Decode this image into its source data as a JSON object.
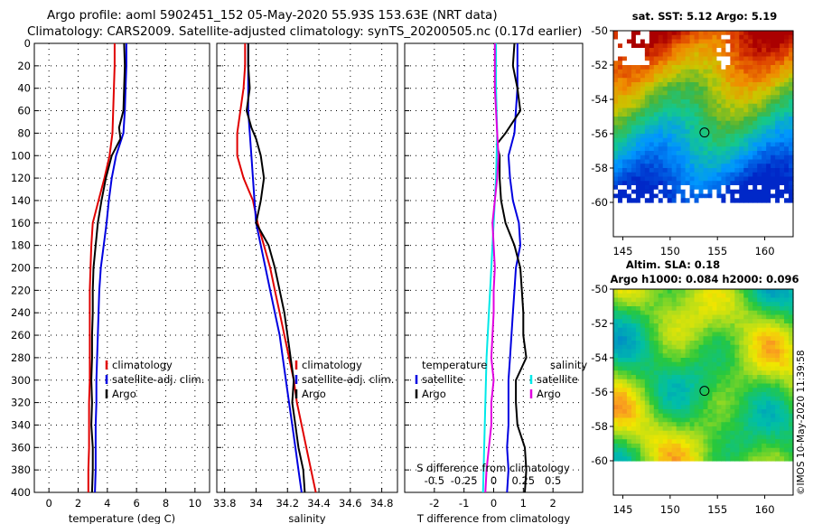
{
  "header": {
    "line1": "Argo profile: aoml 5902451_152 05-May-2020 55.93S 153.63E (NRT data)",
    "line2": "Climatology: CARS2009. Satellite-adjusted climatology: synTS_20200505.nc (0.17d earlier)"
  },
  "credit": "©IMOS 10-May-2020 11:39:58",
  "colors": {
    "climatology": "#e00000",
    "satellite": "#0000e0",
    "argo": "#000000",
    "sat_salinity": "#00e8e8",
    "argo_salinity": "#e000e0"
  },
  "chart_data": [
    {
      "type": "line",
      "name": "temperature",
      "xlabel": "temperature (deg C)",
      "xlim": [
        -1,
        11
      ],
      "xticks": [
        0,
        2,
        4,
        6,
        8,
        10
      ],
      "xtick_labels": [
        "0",
        "2",
        "4",
        "6",
        "8",
        "10"
      ],
      "ylim": [
        0,
        400
      ],
      "yticks": [
        0,
        20,
        40,
        60,
        80,
        100,
        120,
        140,
        160,
        180,
        200,
        220,
        240,
        260,
        280,
        300,
        320,
        340,
        360,
        380,
        400
      ],
      "legend": [
        "climatology",
        "satellite-adj. clim.",
        "Argo"
      ],
      "series": [
        {
          "name": "climatology",
          "color": "#e00000",
          "points": [
            [
              4.5,
              0
            ],
            [
              4.5,
              20
            ],
            [
              4.45,
              40
            ],
            [
              4.4,
              60
            ],
            [
              4.35,
              80
            ],
            [
              4.15,
              100
            ],
            [
              3.8,
              120
            ],
            [
              3.4,
              140
            ],
            [
              3.0,
              160
            ],
            [
              2.9,
              180
            ],
            [
              2.85,
              200
            ],
            [
              2.8,
              220
            ],
            [
              2.8,
              240
            ],
            [
              2.8,
              260
            ],
            [
              2.8,
              280
            ],
            [
              2.8,
              300
            ],
            [
              2.75,
              320
            ],
            [
              2.75,
              340
            ],
            [
              2.75,
              360
            ],
            [
              2.7,
              380
            ],
            [
              2.7,
              400
            ]
          ]
        },
        {
          "name": "satellite-adj. clim.",
          "color": "#0000e0",
          "points": [
            [
              5.3,
              0
            ],
            [
              5.3,
              20
            ],
            [
              5.25,
              40
            ],
            [
              5.2,
              60
            ],
            [
              5.1,
              80
            ],
            [
              4.6,
              100
            ],
            [
              4.3,
              120
            ],
            [
              4.1,
              140
            ],
            [
              3.95,
              160
            ],
            [
              3.75,
              180
            ],
            [
              3.55,
              200
            ],
            [
              3.45,
              220
            ],
            [
              3.4,
              240
            ],
            [
              3.35,
              260
            ],
            [
              3.3,
              280
            ],
            [
              3.25,
              300
            ],
            [
              3.25,
              320
            ],
            [
              3.2,
              340
            ],
            [
              3.2,
              360
            ],
            [
              3.2,
              380
            ],
            [
              3.15,
              400
            ]
          ]
        },
        {
          "name": "Argo",
          "color": "#000000",
          "points": [
            [
              5.15,
              0
            ],
            [
              5.2,
              20
            ],
            [
              5.15,
              40
            ],
            [
              5.1,
              60
            ],
            [
              4.8,
              75
            ],
            [
              4.9,
              85
            ],
            [
              4.3,
              100
            ],
            [
              3.9,
              120
            ],
            [
              3.6,
              140
            ],
            [
              3.35,
              160
            ],
            [
              3.2,
              180
            ],
            [
              3.05,
              200
            ],
            [
              3.0,
              220
            ],
            [
              3.0,
              240
            ],
            [
              2.95,
              260
            ],
            [
              2.95,
              280
            ],
            [
              2.9,
              300
            ],
            [
              2.95,
              320
            ],
            [
              2.9,
              340
            ],
            [
              3.0,
              360
            ],
            [
              3.0,
              380
            ],
            [
              2.95,
              400
            ]
          ]
        }
      ]
    },
    {
      "type": "line",
      "name": "salinity",
      "xlabel": "salinity",
      "xlim": [
        33.75,
        34.9
      ],
      "xticks": [
        33.8,
        34,
        34.2,
        34.4,
        34.6,
        34.8
      ],
      "xtick_labels": [
        "33.8",
        "34",
        "34.2",
        "34.4",
        "34.6",
        "34.8"
      ],
      "ylim": [
        0,
        400
      ],
      "legend": [
        "climatology",
        "satellite-adj. clim.",
        "Argo"
      ],
      "series": [
        {
          "name": "climatology",
          "color": "#e00000",
          "points": [
            [
              33.93,
              0
            ],
            [
              33.93,
              20
            ],
            [
              33.92,
              40
            ],
            [
              33.9,
              60
            ],
            [
              33.88,
              80
            ],
            [
              33.88,
              100
            ],
            [
              33.92,
              120
            ],
            [
              33.98,
              140
            ],
            [
              34.01,
              160
            ],
            [
              34.05,
              180
            ],
            [
              34.09,
              200
            ],
            [
              34.12,
              220
            ],
            [
              34.15,
              240
            ],
            [
              34.18,
              260
            ],
            [
              34.21,
              280
            ],
            [
              34.24,
              300
            ],
            [
              34.26,
              320
            ],
            [
              34.29,
              340
            ],
            [
              34.32,
              360
            ],
            [
              34.35,
              380
            ],
            [
              34.38,
              400
            ]
          ]
        },
        {
          "name": "satellite-adj. clim.",
          "color": "#0000e0",
          "points": [
            [
              33.95,
              0
            ],
            [
              33.95,
              20
            ],
            [
              33.95,
              40
            ],
            [
              33.95,
              60
            ],
            [
              33.96,
              80
            ],
            [
              33.97,
              100
            ],
            [
              33.98,
              120
            ],
            [
              33.99,
              140
            ],
            [
              34.0,
              160
            ],
            [
              34.03,
              180
            ],
            [
              34.06,
              200
            ],
            [
              34.09,
              220
            ],
            [
              34.12,
              240
            ],
            [
              34.15,
              260
            ],
            [
              34.17,
              280
            ],
            [
              34.19,
              300
            ],
            [
              34.21,
              320
            ],
            [
              34.23,
              340
            ],
            [
              34.25,
              360
            ],
            [
              34.27,
              380
            ],
            [
              34.29,
              400
            ]
          ]
        },
        {
          "name": "Argo",
          "color": "#000000",
          "points": [
            [
              33.95,
              0
            ],
            [
              33.95,
              20
            ],
            [
              33.96,
              40
            ],
            [
              33.94,
              60
            ],
            [
              33.97,
              75
            ],
            [
              34.0,
              85
            ],
            [
              34.03,
              100
            ],
            [
              34.05,
              120
            ],
            [
              34.03,
              140
            ],
            [
              34.0,
              160
            ],
            [
              34.08,
              180
            ],
            [
              34.12,
              200
            ],
            [
              34.15,
              220
            ],
            [
              34.18,
              240
            ],
            [
              34.2,
              260
            ],
            [
              34.22,
              280
            ],
            [
              34.24,
              300
            ],
            [
              34.23,
              320
            ],
            [
              34.25,
              340
            ],
            [
              34.27,
              360
            ],
            [
              34.3,
              380
            ],
            [
              34.31,
              400
            ]
          ]
        }
      ]
    },
    {
      "type": "line",
      "name": "differences",
      "xlabel": "T difference from climatology",
      "xlim": [
        -3,
        3
      ],
      "xticks": [
        -2,
        -1,
        0,
        1,
        2
      ],
      "xtick_labels": [
        "-2",
        "-1",
        "0",
        "1",
        "2"
      ],
      "top_label": "S difference from climatology",
      "top_ticks": [
        -0.5,
        -0.25,
        0,
        0.25,
        0.5
      ],
      "top_tick_labels": [
        "-0.5",
        "-0.25",
        "0",
        "0.25",
        "0.5"
      ],
      "ylim": [
        0,
        400
      ],
      "legend_left_title": "temperature",
      "legend_right_title": "salinity",
      "legend": [
        "satellite",
        "Argo",
        "satellite",
        "Argo"
      ],
      "series": [
        {
          "name": "T satellite",
          "color": "#0000e0",
          "points": [
            [
              0.8,
              0
            ],
            [
              0.8,
              20
            ],
            [
              0.8,
              40
            ],
            [
              0.75,
              60
            ],
            [
              0.7,
              80
            ],
            [
              0.5,
              100
            ],
            [
              0.55,
              120
            ],
            [
              0.65,
              140
            ],
            [
              0.85,
              160
            ],
            [
              0.9,
              180
            ],
            [
              0.75,
              200
            ],
            [
              0.7,
              220
            ],
            [
              0.65,
              240
            ],
            [
              0.6,
              260
            ],
            [
              0.55,
              280
            ],
            [
              0.5,
              300
            ],
            [
              0.5,
              320
            ],
            [
              0.5,
              340
            ],
            [
              0.45,
              360
            ],
            [
              0.5,
              380
            ],
            [
              0.45,
              400
            ]
          ]
        },
        {
          "name": "T Argo",
          "color": "#000000",
          "points": [
            [
              0.7,
              0
            ],
            [
              0.65,
              20
            ],
            [
              0.8,
              40
            ],
            [
              0.9,
              60
            ],
            [
              0.4,
              80
            ],
            [
              0.1,
              90
            ],
            [
              0.2,
              100
            ],
            [
              0.2,
              120
            ],
            [
              0.25,
              140
            ],
            [
              0.4,
              160
            ],
            [
              0.7,
              180
            ],
            [
              0.9,
              200
            ],
            [
              0.95,
              220
            ],
            [
              1.0,
              240
            ],
            [
              1.0,
              260
            ],
            [
              1.1,
              280
            ],
            [
              0.75,
              300
            ],
            [
              0.75,
              320
            ],
            [
              0.8,
              340
            ],
            [
              1.05,
              360
            ],
            [
              1.1,
              380
            ],
            [
              1.05,
              400
            ]
          ]
        },
        {
          "name": "S satellite",
          "color": "#00e8e8",
          "points": [
            [
              0.02,
              0
            ],
            [
              0.02,
              40
            ],
            [
              0.03,
              80
            ],
            [
              0.02,
              120
            ],
            [
              0.0,
              160
            ],
            [
              -0.02,
              200
            ],
            [
              -0.04,
              240
            ],
            [
              -0.06,
              280
            ],
            [
              -0.07,
              320
            ],
            [
              -0.08,
              360
            ],
            [
              -0.09,
              400
            ]
          ]
        },
        {
          "name": "S Argo",
          "color": "#e000e0",
          "points": [
            [
              0.01,
              0
            ],
            [
              0.01,
              40
            ],
            [
              0.02,
              60
            ],
            [
              0.03,
              80
            ],
            [
              0.04,
              100
            ],
            [
              0.03,
              120
            ],
            [
              0.01,
              140
            ],
            [
              -0.01,
              160
            ],
            [
              0.0,
              180
            ],
            [
              0.01,
              200
            ],
            [
              0.0,
              220
            ],
            [
              0.0,
              240
            ],
            [
              -0.01,
              260
            ],
            [
              -0.02,
              280
            ],
            [
              0.0,
              300
            ],
            [
              -0.02,
              320
            ],
            [
              -0.02,
              340
            ],
            [
              -0.04,
              360
            ],
            [
              -0.06,
              380
            ],
            [
              -0.07,
              400
            ]
          ]
        }
      ]
    },
    {
      "type": "heatmap",
      "name": "sst_map",
      "title": "sat. SST: 5.12 Argo: 5.19",
      "xticks": [
        145,
        150,
        155,
        160
      ],
      "xtick_labels": [
        "145",
        "150",
        "155",
        "160"
      ],
      "yticks": [
        -50,
        -52,
        -54,
        -56,
        -58,
        -60
      ],
      "ytick_labels": [
        "-50",
        "-52",
        "-54",
        "-56",
        "-58",
        "-60"
      ],
      "xlim": [
        144,
        163
      ],
      "ylim": [
        -62,
        -50
      ],
      "data_bottom": -60,
      "marker": [
        153.63,
        -55.93
      ]
    },
    {
      "type": "heatmap",
      "name": "sla_map",
      "title": "Altim. SLA: 0.18",
      "subtitle": "Argo h1000: 0.084 h2000: 0.096",
      "xticks": [
        145,
        150,
        155,
        160
      ],
      "xtick_labels": [
        "145",
        "150",
        "155",
        "160"
      ],
      "yticks": [
        -50,
        -52,
        -54,
        -56,
        -58,
        -60
      ],
      "ytick_labels": [
        "-50",
        "-52",
        "-54",
        "-56",
        "-58",
        "-60"
      ],
      "xlim": [
        144,
        163
      ],
      "ylim": [
        -62,
        -50
      ],
      "data_bottom": -60,
      "marker": [
        153.63,
        -55.93
      ]
    }
  ]
}
